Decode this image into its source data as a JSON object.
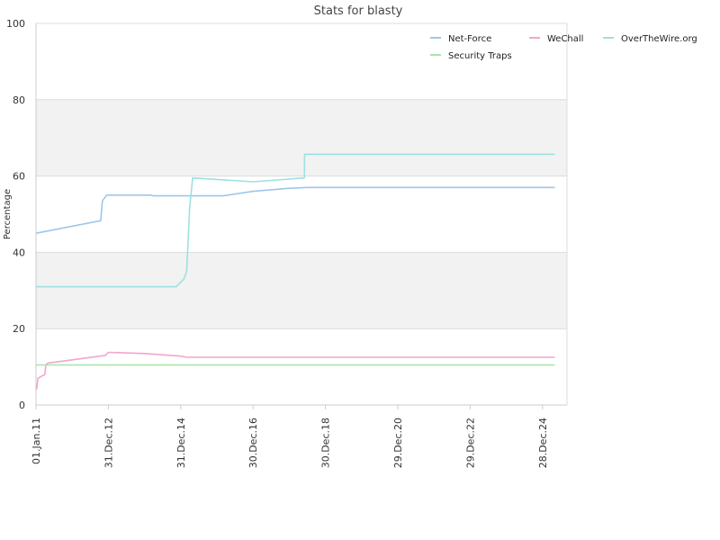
{
  "chart_data": {
    "type": "line",
    "title": "Stats for blasty",
    "xlabel": "",
    "ylabel": "Percentage",
    "ylim": [
      0,
      100
    ],
    "yticks": [
      0,
      20,
      40,
      60,
      80,
      100
    ],
    "xlim": [
      "2011-01-01",
      "2025-09-01"
    ],
    "xticks": [
      {
        "date": "2011-01-01",
        "label": "01.Jan.11"
      },
      {
        "date": "2012-12-31",
        "label": "31.Dec.12"
      },
      {
        "date": "2014-12-31",
        "label": "31.Dec.14"
      },
      {
        "date": "2016-12-30",
        "label": "30.Dec.16"
      },
      {
        "date": "2018-12-30",
        "label": "30.Dec.18"
      },
      {
        "date": "2020-12-29",
        "label": "29.Dec.20"
      },
      {
        "date": "2022-12-29",
        "label": "29.Dec.22"
      },
      {
        "date": "2024-12-28",
        "label": "28.Dec.24"
      }
    ],
    "grid": "alternating horizontal bands",
    "legend_position": "top-right",
    "series": [
      {
        "name": "Net-Force",
        "color": "#9cc7ec",
        "points": [
          [
            "2011-01-01",
            45.0
          ],
          [
            "2012-10-15",
            48.3
          ],
          [
            "2012-10-20",
            50.0
          ],
          [
            "2012-11-01",
            53.5
          ],
          [
            "2012-12-15",
            55.0
          ],
          [
            "2014-03-01",
            55.0
          ],
          [
            "2014-04-01",
            54.8
          ],
          [
            "2016-03-01",
            54.8
          ],
          [
            "2016-12-30",
            56.0
          ],
          [
            "2018-01-01",
            56.8
          ],
          [
            "2018-07-01",
            57.0
          ],
          [
            "2025-05-01",
            57.0
          ]
        ]
      },
      {
        "name": "WeChall",
        "color": "#f3a6cb",
        "points": [
          [
            "2011-01-01",
            4.0
          ],
          [
            "2011-01-10",
            4.5
          ],
          [
            "2011-01-20",
            7.0
          ],
          [
            "2011-04-01",
            8.0
          ],
          [
            "2011-04-10",
            10.5
          ],
          [
            "2011-05-01",
            11.0
          ],
          [
            "2012-12-01",
            13.0
          ],
          [
            "2012-12-31",
            13.8
          ],
          [
            "2014-01-01",
            13.5
          ],
          [
            "2015-01-01",
            12.8
          ],
          [
            "2015-03-01",
            12.5
          ],
          [
            "2025-05-01",
            12.5
          ]
        ]
      },
      {
        "name": "OverTheWire.org",
        "color": "#9ee0e0",
        "points": [
          [
            "2011-01-01",
            31.0
          ],
          [
            "2014-11-15",
            31.0
          ],
          [
            "2015-02-01",
            33.0
          ],
          [
            "2015-03-01",
            35.0
          ],
          [
            "2015-04-01",
            52.0
          ],
          [
            "2015-05-01",
            59.5
          ],
          [
            "2016-12-30",
            58.5
          ],
          [
            "2018-06-01",
            59.5
          ],
          [
            "2018-06-02",
            65.7
          ],
          [
            "2025-05-01",
            65.7
          ]
        ]
      },
      {
        "name": "Security Traps",
        "color": "#a6e6a6",
        "points": [
          [
            "2011-01-01",
            10.5
          ],
          [
            "2025-05-01",
            10.5
          ]
        ]
      }
    ]
  }
}
